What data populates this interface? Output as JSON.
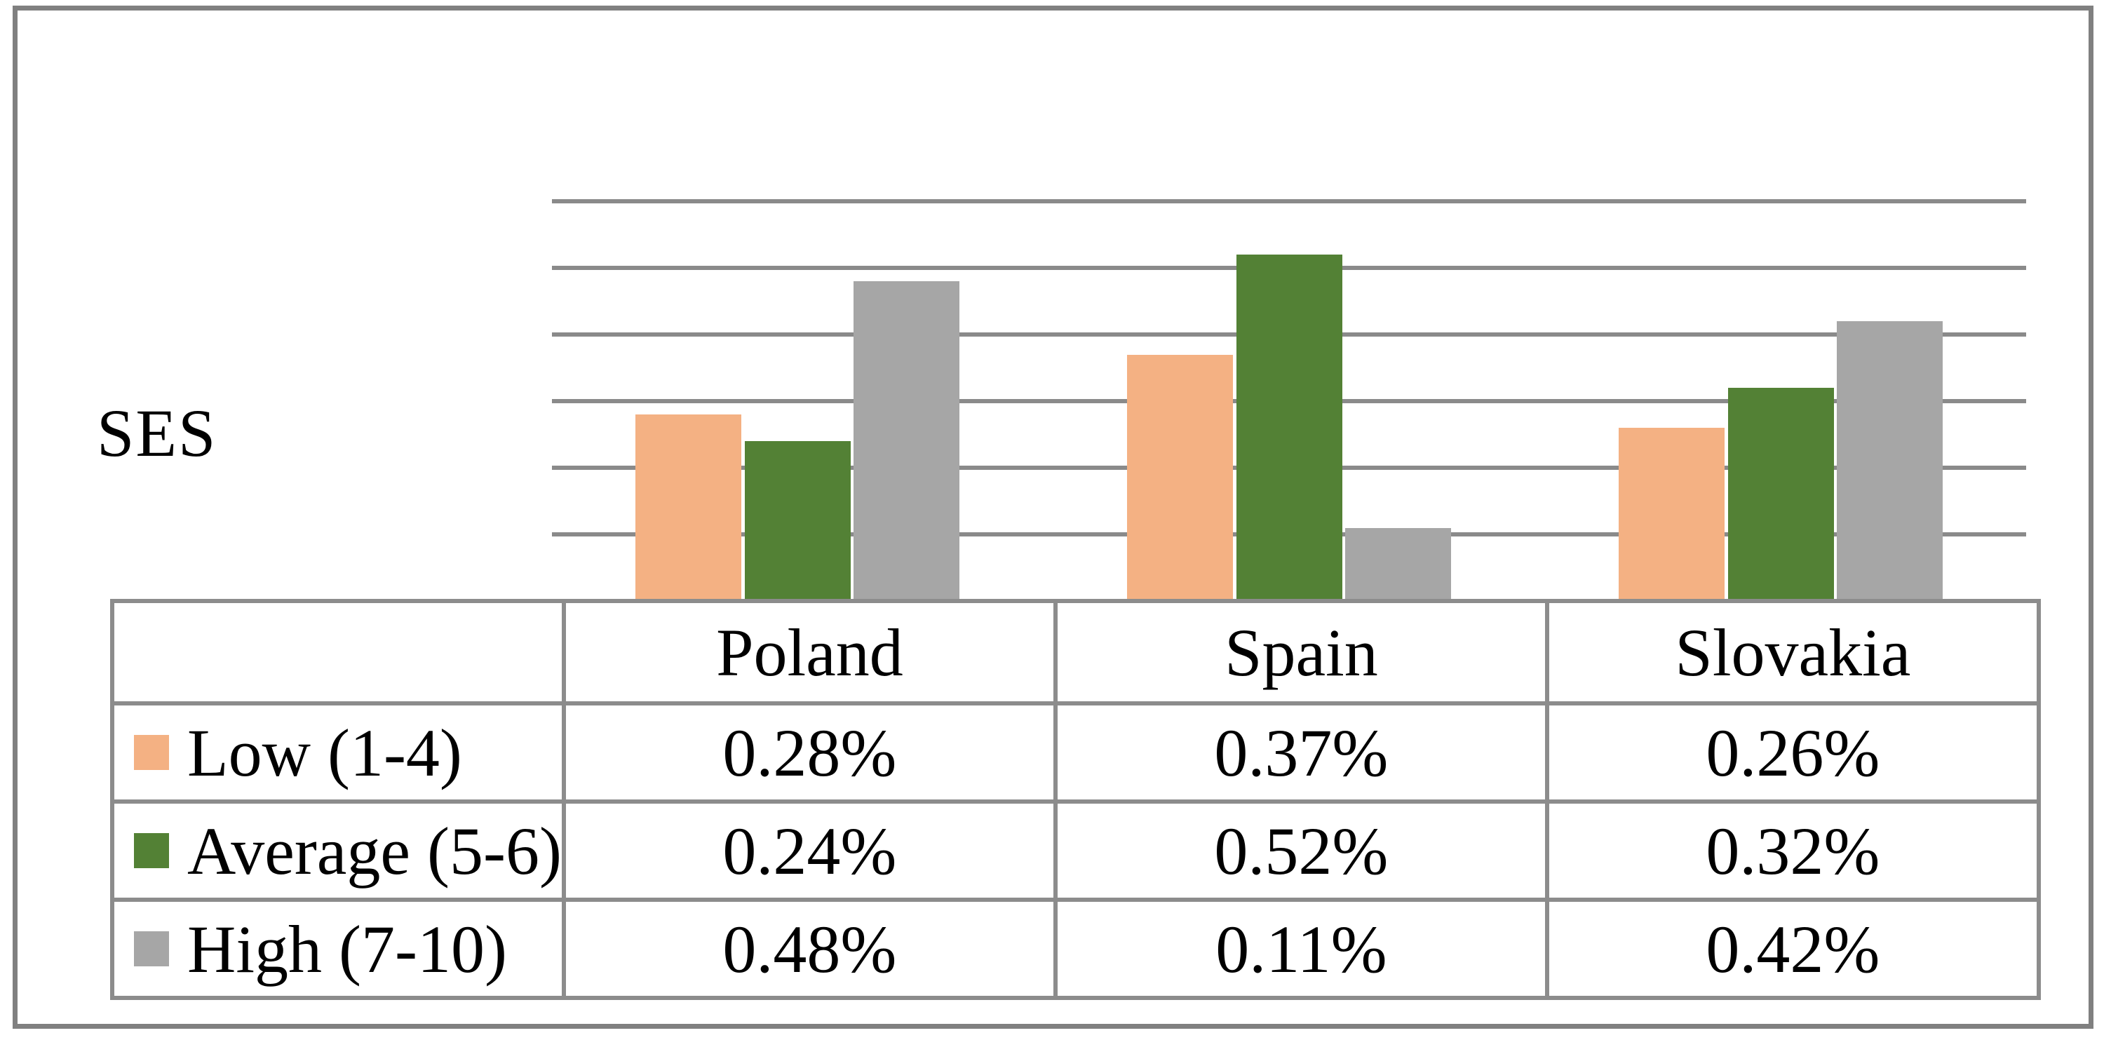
{
  "figure": {
    "axis_label": "SES",
    "frame_color": "#808080",
    "gridline_color": "#8a8a8a",
    "table_border_color": "#8c8c8c",
    "background_color": "#ffffff"
  },
  "chart_data": {
    "type": "bar",
    "title": "",
    "xlabel": "",
    "ylabel": "SES",
    "unit": "%",
    "categories": [
      "Poland",
      "Spain",
      "Slovakia"
    ],
    "series": [
      {
        "name": "Low (1-4)",
        "color": "#F4B183",
        "values": [
          0.28,
          0.37,
          0.26
        ],
        "display": [
          "0.28%",
          "0.37%",
          "0.26%"
        ]
      },
      {
        "name": "Average (5-6)",
        "color": "#538135",
        "values": [
          0.24,
          0.52,
          0.32
        ],
        "display": [
          "0.24%",
          "0.52%",
          "0.32%"
        ]
      },
      {
        "name": "High (7-10)",
        "color": "#A6A6A6",
        "values": [
          0.48,
          0.11,
          0.42
        ],
        "display": [
          "0.48%",
          "0.11%",
          "0.42%"
        ]
      }
    ],
    "ylim": [
      0,
      0.6
    ],
    "gridline_step": 0.1,
    "y_tick_labels_shown": false,
    "grid": "horizontal",
    "legend_position": "table-left",
    "data_table_attached": true
  }
}
